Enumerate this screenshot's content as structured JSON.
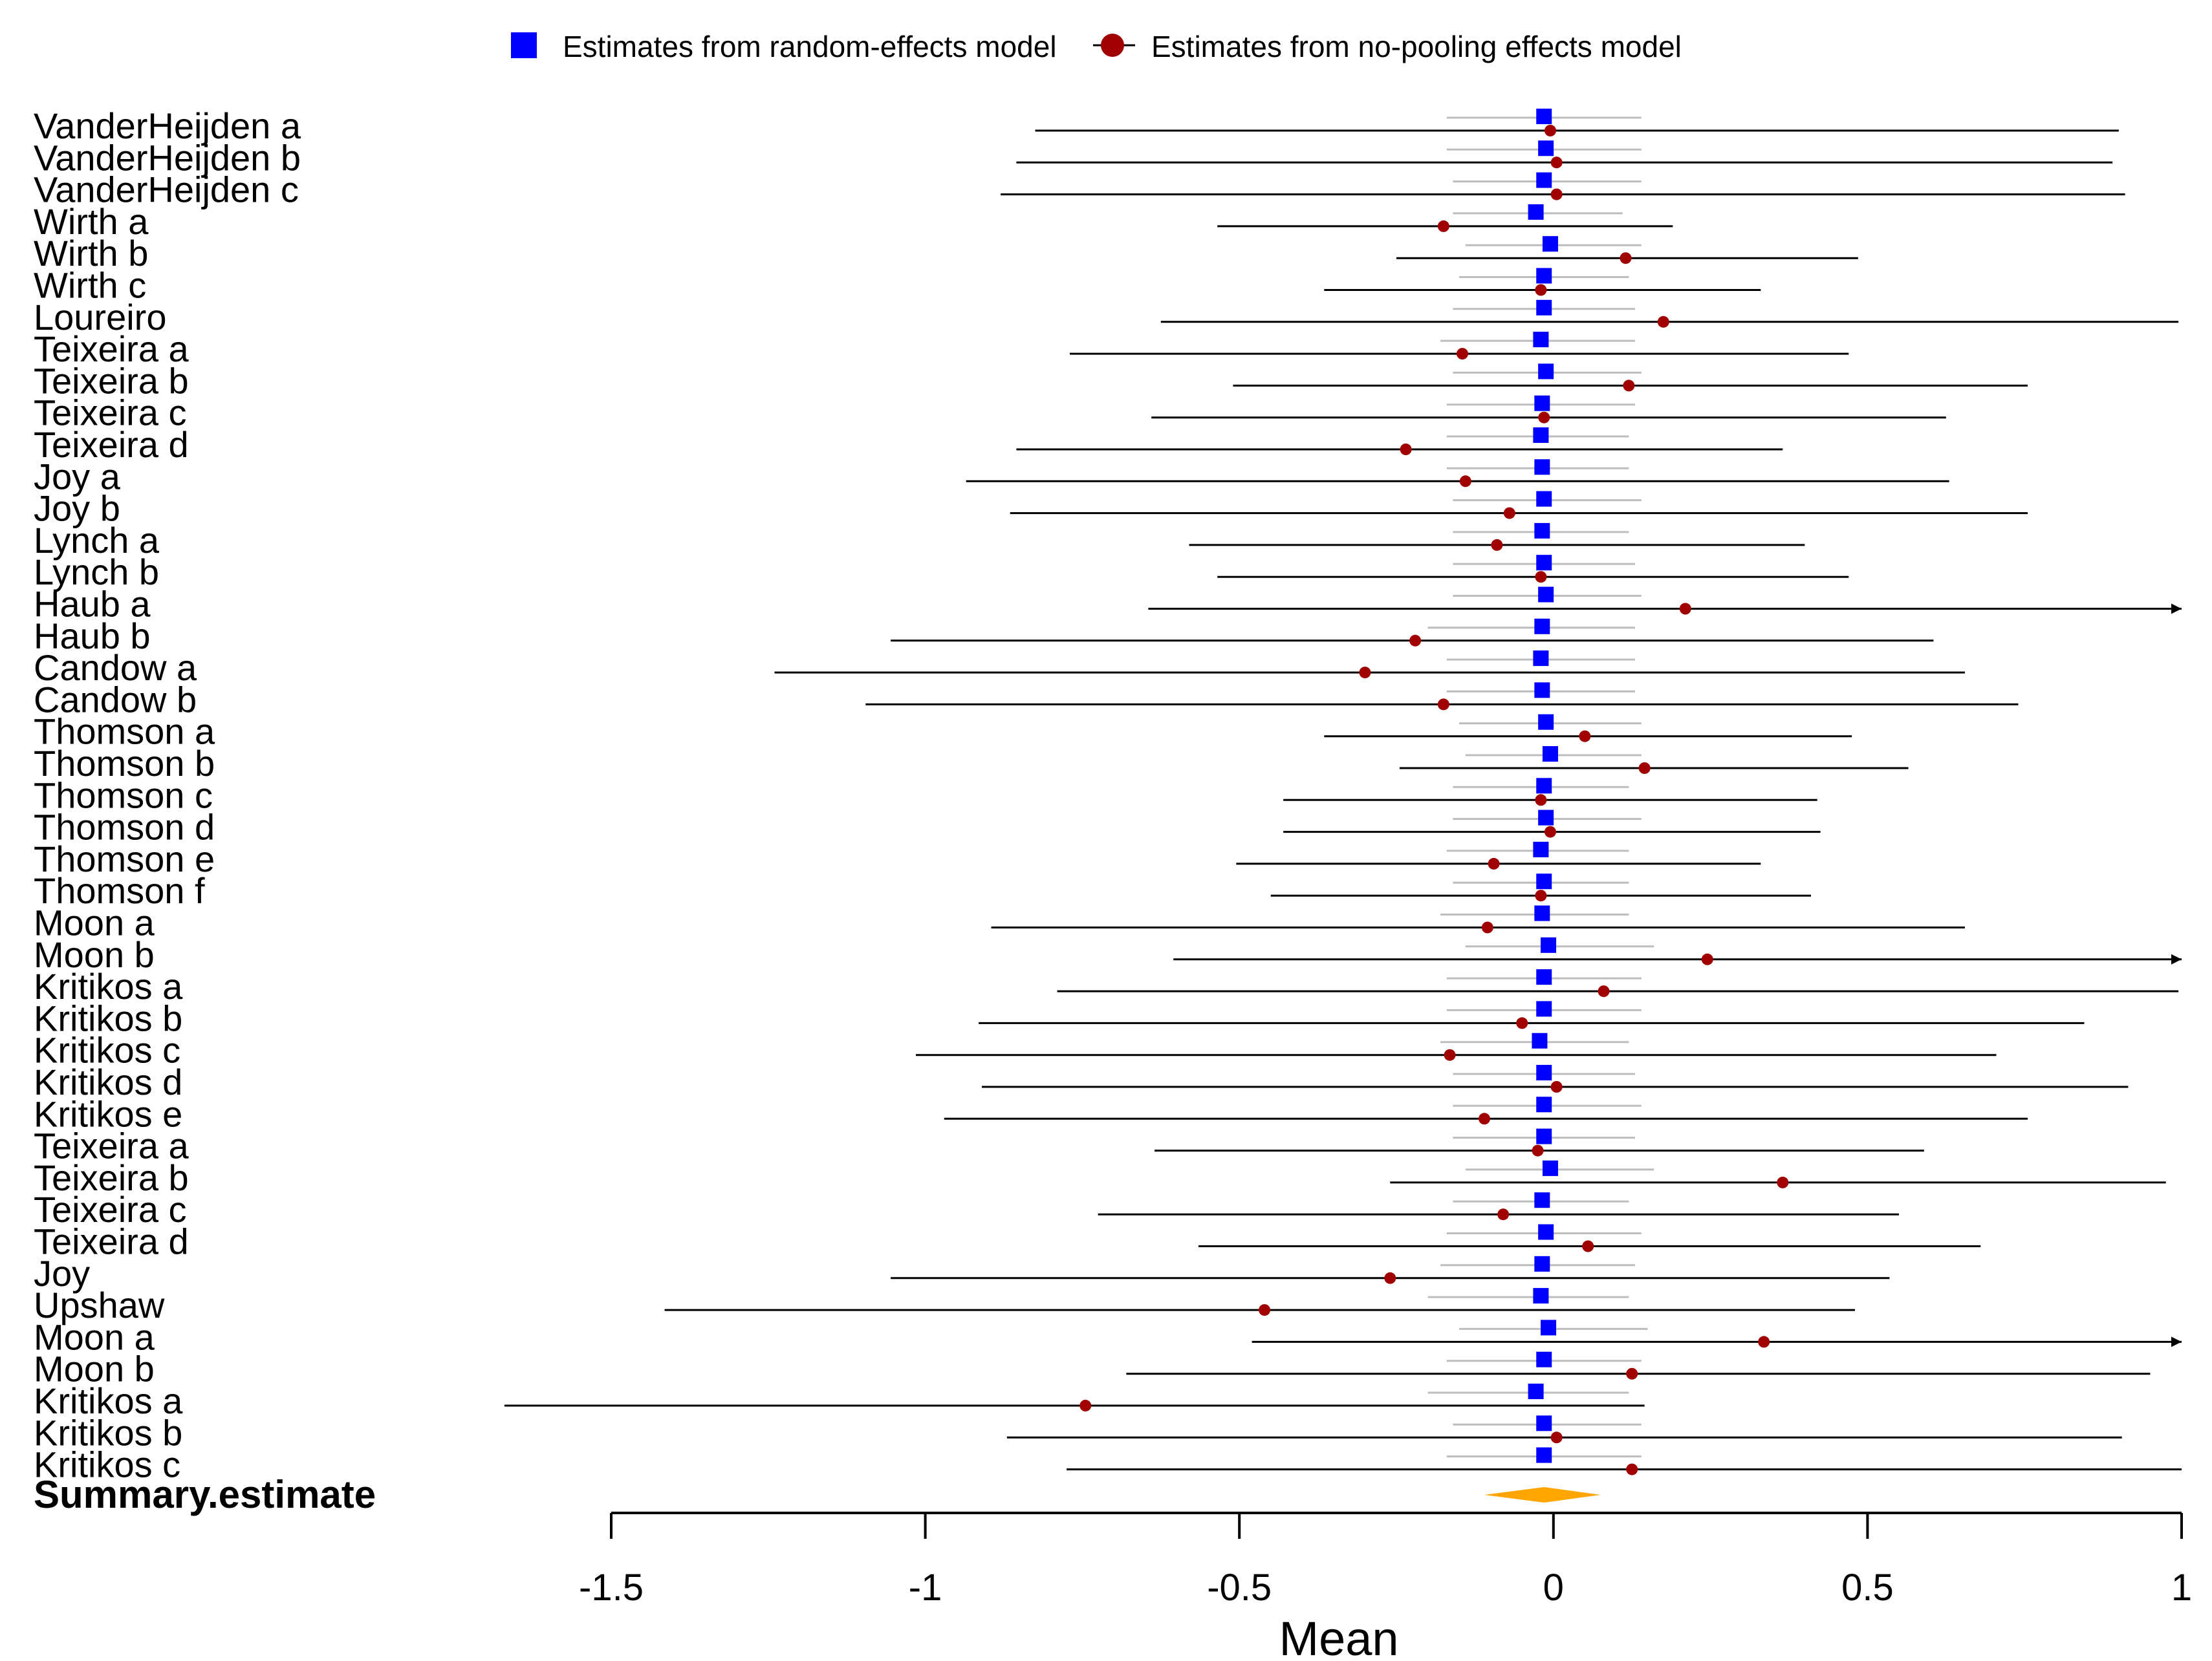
{
  "chart_data": {
    "type": "forest",
    "xlabel": "Mean",
    "xlim": [
      -1.5,
      1
    ],
    "ticks": [
      -1.5,
      -1,
      -0.5,
      0,
      0.5,
      1
    ],
    "tick_labels": [
      "-1.5",
      "-1",
      "-0.5",
      "0",
      "0.5",
      "1"
    ],
    "legend": {
      "position": "top",
      "entries": [
        {
          "label": "Estimates from random-effects model",
          "marker": "square",
          "color": "#0000ff"
        },
        {
          "label": "Estimates from no-pooling effects model",
          "marker": "circle",
          "color": "#a00000"
        }
      ]
    },
    "colors": {
      "random": "#0000ff",
      "nopool": "#a00000",
      "nopool_ci": "#000000",
      "random_ci": "#bdbdbd",
      "summary": "#ffa500"
    },
    "studies": [
      {
        "label": "VanderHeijden a",
        "random": -0.015,
        "random_ci": [
          -0.17,
          0.14
        ],
        "nopool": -0.005,
        "ci": [
          -0.825,
          0.9
        ]
      },
      {
        "label": "VanderHeijden b",
        "random": -0.012,
        "random_ci": [
          -0.17,
          0.14
        ],
        "nopool": 0.005,
        "ci": [
          -0.855,
          0.89
        ]
      },
      {
        "label": "VanderHeijden c",
        "random": -0.015,
        "random_ci": [
          -0.16,
          0.14
        ],
        "nopool": 0.005,
        "ci": [
          -0.88,
          0.91
        ]
      },
      {
        "label": "Wirth a",
        "random": -0.028,
        "random_ci": [
          -0.16,
          0.11
        ],
        "nopool": -0.175,
        "ci": [
          -0.535,
          0.19
        ]
      },
      {
        "label": "Wirth b",
        "random": -0.005,
        "random_ci": [
          -0.14,
          0.14
        ],
        "nopool": 0.115,
        "ci": [
          -0.25,
          0.485
        ]
      },
      {
        "label": "Wirth c",
        "random": -0.015,
        "random_ci": [
          -0.15,
          0.12
        ],
        "nopool": -0.02,
        "ci": [
          -0.365,
          0.33
        ]
      },
      {
        "label": "Loureiro",
        "random": -0.015,
        "random_ci": [
          -0.16,
          0.13
        ],
        "nopool": 0.175,
        "ci": [
          -0.625,
          0.995
        ]
      },
      {
        "label": "Teixeira a",
        "random": -0.02,
        "random_ci": [
          -0.18,
          0.13
        ],
        "nopool": -0.145,
        "ci": [
          -0.77,
          0.47
        ]
      },
      {
        "label": "Teixeira b",
        "random": -0.012,
        "random_ci": [
          -0.16,
          0.14
        ],
        "nopool": 0.12,
        "ci": [
          -0.51,
          0.755
        ]
      },
      {
        "label": "Teixeira c",
        "random": -0.018,
        "random_ci": [
          -0.17,
          0.13
        ],
        "nopool": -0.015,
        "ci": [
          -0.64,
          0.625
        ]
      },
      {
        "label": "Teixeira d",
        "random": -0.02,
        "random_ci": [
          -0.17,
          0.12
        ],
        "nopool": -0.235,
        "ci": [
          -0.855,
          0.365
        ]
      },
      {
        "label": "Joy a",
        "random": -0.018,
        "random_ci": [
          -0.17,
          0.12
        ],
        "nopool": -0.14,
        "ci": [
          -0.935,
          0.63
        ]
      },
      {
        "label": "Joy b",
        "random": -0.015,
        "random_ci": [
          -0.16,
          0.14
        ],
        "nopool": -0.07,
        "ci": [
          -0.865,
          0.755
        ]
      },
      {
        "label": "Lynch a",
        "random": -0.018,
        "random_ci": [
          -0.16,
          0.12
        ],
        "nopool": -0.09,
        "ci": [
          -0.58,
          0.4
        ]
      },
      {
        "label": "Lynch b",
        "random": -0.015,
        "random_ci": [
          -0.16,
          0.13
        ],
        "nopool": -0.02,
        "ci": [
          -0.535,
          0.47
        ]
      },
      {
        "label": "Haub a",
        "random": -0.012,
        "random_ci": [
          -0.16,
          0.14
        ],
        "nopool": 0.21,
        "ci": [
          -0.645,
          1.0
        ],
        "arrow": true
      },
      {
        "label": "Haub b",
        "random": -0.018,
        "random_ci": [
          -0.2,
          0.13
        ],
        "nopool": -0.22,
        "ci": [
          -1.055,
          0.605
        ]
      },
      {
        "label": "Candow a",
        "random": -0.02,
        "random_ci": [
          -0.17,
          0.13
        ],
        "nopool": -0.3,
        "ci": [
          -1.24,
          0.655
        ]
      },
      {
        "label": "Candow b",
        "random": -0.018,
        "random_ci": [
          -0.17,
          0.13
        ],
        "nopool": -0.175,
        "ci": [
          -1.095,
          0.74
        ]
      },
      {
        "label": "Thomson a",
        "random": -0.012,
        "random_ci": [
          -0.15,
          0.14
        ],
        "nopool": 0.05,
        "ci": [
          -0.365,
          0.475
        ]
      },
      {
        "label": "Thomson b",
        "random": -0.005,
        "random_ci": [
          -0.14,
          0.14
        ],
        "nopool": 0.145,
        "ci": [
          -0.245,
          0.565
        ]
      },
      {
        "label": "Thomson c",
        "random": -0.015,
        "random_ci": [
          -0.16,
          0.12
        ],
        "nopool": -0.02,
        "ci": [
          -0.43,
          0.42
        ]
      },
      {
        "label": "Thomson d",
        "random": -0.012,
        "random_ci": [
          -0.16,
          0.14
        ],
        "nopool": -0.005,
        "ci": [
          -0.43,
          0.425
        ]
      },
      {
        "label": "Thomson e",
        "random": -0.02,
        "random_ci": [
          -0.17,
          0.12
        ],
        "nopool": -0.095,
        "ci": [
          -0.505,
          0.33
        ]
      },
      {
        "label": "Thomson f",
        "random": -0.015,
        "random_ci": [
          -0.16,
          0.12
        ],
        "nopool": -0.02,
        "ci": [
          -0.45,
          0.41
        ]
      },
      {
        "label": "Moon a",
        "random": -0.018,
        "random_ci": [
          -0.18,
          0.12
        ],
        "nopool": -0.105,
        "ci": [
          -0.895,
          0.655
        ]
      },
      {
        "label": "Moon b",
        "random": -0.008,
        "random_ci": [
          -0.14,
          0.16
        ],
        "nopool": 0.245,
        "ci": [
          -0.605,
          1.0
        ],
        "arrow": true
      },
      {
        "label": "Kritikos a",
        "random": -0.015,
        "random_ci": [
          -0.17,
          0.14
        ],
        "nopool": 0.08,
        "ci": [
          -0.79,
          0.995
        ]
      },
      {
        "label": "Kritikos b",
        "random": -0.015,
        "random_ci": [
          -0.17,
          0.14
        ],
        "nopool": -0.05,
        "ci": [
          -0.915,
          0.845
        ]
      },
      {
        "label": "Kritikos c",
        "random": -0.022,
        "random_ci": [
          -0.18,
          0.12
        ],
        "nopool": -0.165,
        "ci": [
          -1.015,
          0.705
        ]
      },
      {
        "label": "Kritikos d",
        "random": -0.015,
        "random_ci": [
          -0.16,
          0.13
        ],
        "nopool": 0.005,
        "ci": [
          -0.91,
          0.915
        ]
      },
      {
        "label": "Kritikos e",
        "random": -0.015,
        "random_ci": [
          -0.16,
          0.14
        ],
        "nopool": -0.11,
        "ci": [
          -0.97,
          0.755
        ]
      },
      {
        "label": "Teixeira a",
        "random": -0.015,
        "random_ci": [
          -0.16,
          0.13
        ],
        "nopool": -0.025,
        "ci": [
          -0.635,
          0.59
        ]
      },
      {
        "label": "Teixeira b",
        "random": -0.005,
        "random_ci": [
          -0.14,
          0.16
        ],
        "nopool": 0.365,
        "ci": [
          -0.26,
          0.975
        ]
      },
      {
        "label": "Teixeira c",
        "random": -0.018,
        "random_ci": [
          -0.16,
          0.12
        ],
        "nopool": -0.08,
        "ci": [
          -0.725,
          0.55
        ]
      },
      {
        "label": "Teixeira d",
        "random": -0.012,
        "random_ci": [
          -0.17,
          0.14
        ],
        "nopool": 0.055,
        "ci": [
          -0.565,
          0.68
        ]
      },
      {
        "label": "Joy",
        "random": -0.018,
        "random_ci": [
          -0.18,
          0.13
        ],
        "nopool": -0.26,
        "ci": [
          -1.055,
          0.535
        ]
      },
      {
        "label": "Upshaw",
        "random": -0.02,
        "random_ci": [
          -0.2,
          0.12
        ],
        "nopool": -0.46,
        "ci": [
          -1.415,
          0.48
        ]
      },
      {
        "label": "Moon a",
        "random": -0.008,
        "random_ci": [
          -0.15,
          0.15
        ],
        "nopool": 0.335,
        "ci": [
          -0.48,
          1.0
        ],
        "arrow": true
      },
      {
        "label": "Moon b",
        "random": -0.015,
        "random_ci": [
          -0.17,
          0.14
        ],
        "nopool": 0.125,
        "ci": [
          -0.68,
          0.95
        ]
      },
      {
        "label": "Kritikos a",
        "random": -0.028,
        "random_ci": [
          -0.2,
          0.12
        ],
        "nopool": -0.745,
        "ci": [
          -1.67,
          0.145
        ]
      },
      {
        "label": "Kritikos b",
        "random": -0.015,
        "random_ci": [
          -0.16,
          0.14
        ],
        "nopool": 0.005,
        "ci": [
          -0.87,
          0.905
        ]
      },
      {
        "label": "Kritikos c",
        "random": -0.015,
        "random_ci": [
          -0.17,
          0.14
        ],
        "nopool": 0.125,
        "ci": [
          -0.775,
          1.0
        ]
      }
    ],
    "summary": {
      "label": "Summary.estimate",
      "estimate": -0.015,
      "ci": [
        -0.11,
        0.075
      ]
    }
  }
}
